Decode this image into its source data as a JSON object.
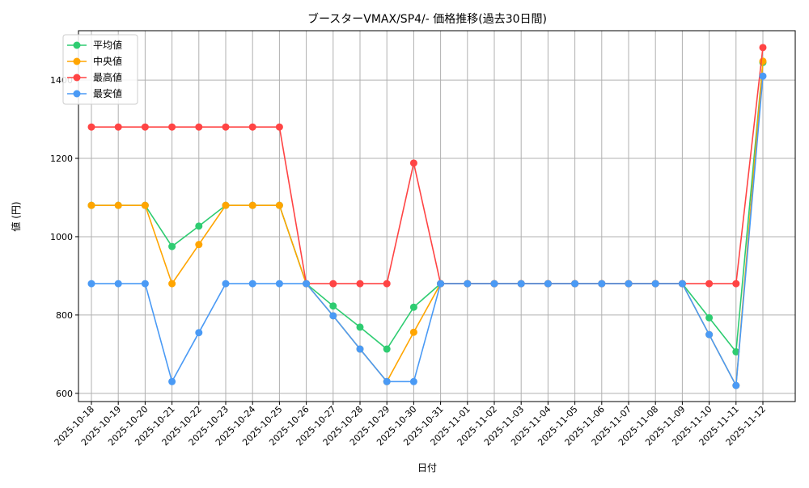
{
  "chart_data": {
    "type": "line",
    "title": "ブースターVMAX/SP4/- 価格推移(過去30日間)",
    "xlabel": "日付",
    "ylabel": "値 (円)",
    "ylim": [
      579,
      1526
    ],
    "yticks": [
      600,
      800,
      1000,
      1200,
      1400
    ],
    "grid": true,
    "legend_position": "top-left",
    "x": [
      "2025-10-18",
      "2025-10-19",
      "2025-10-20",
      "2025-10-21",
      "2025-10-22",
      "2025-10-23",
      "2025-10-24",
      "2025-10-25",
      "2025-10-26",
      "2025-10-27",
      "2025-10-28",
      "2025-10-29",
      "2025-10-30",
      "2025-10-31",
      "2025-11-01",
      "2025-11-02",
      "2025-11-03",
      "2025-11-04",
      "2025-11-05",
      "2025-11-06",
      "2025-11-07",
      "2025-11-08",
      "2025-11-09",
      "2025-11-10",
      "2025-11-11",
      "2025-11-12"
    ],
    "series": [
      {
        "name": "平均値",
        "color": "#2ecc71",
        "values": [
          1080,
          1080,
          1080,
          975,
          1027,
          1080,
          1080,
          1080,
          880,
          823,
          769,
          713,
          820,
          880,
          880,
          880,
          880,
          880,
          880,
          880,
          880,
          880,
          880,
          793,
          706,
          1445
        ]
      },
      {
        "name": "中央値",
        "color": "#ffa500",
        "values": [
          1080,
          1080,
          1080,
          880,
          980,
          1080,
          1080,
          1080,
          880,
          798,
          713,
          630,
          756,
          880,
          880,
          880,
          880,
          880,
          880,
          880,
          880,
          880,
          880,
          750,
          620,
          1448
        ]
      },
      {
        "name": "最高値",
        "color": "#ff4444",
        "values": [
          1280,
          1280,
          1280,
          1280,
          1280,
          1280,
          1280,
          1280,
          880,
          880,
          880,
          880,
          1188,
          880,
          880,
          880,
          880,
          880,
          880,
          880,
          880,
          880,
          880,
          880,
          880,
          1483
        ]
      },
      {
        "name": "最安値",
        "color": "#4a9af5",
        "values": [
          880,
          880,
          880,
          630,
          755,
          880,
          880,
          880,
          880,
          798,
          713,
          630,
          630,
          880,
          880,
          880,
          880,
          880,
          880,
          880,
          880,
          880,
          880,
          750,
          620,
          1410
        ]
      }
    ]
  }
}
